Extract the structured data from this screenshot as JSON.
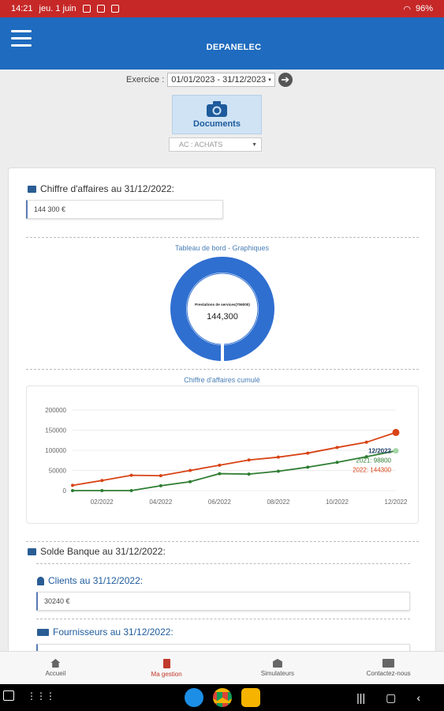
{
  "status": {
    "time": "14:21",
    "date": "jeu. 1 juin",
    "battery": "96%"
  },
  "app": {
    "title": "DEPANELEC"
  },
  "exercice": {
    "label": "Exercice :",
    "value": "01/01/2023 - 31/12/2023"
  },
  "documents": {
    "label": "Documents",
    "select_value": "AC : ACHATS"
  },
  "ca": {
    "title": "Chiffre d'affaires au 31/12/2022:",
    "value": "144 300 €"
  },
  "dashboard": {
    "title": "Tableau de bord - Graphiques",
    "donut_label": "Prestations de services(706000)",
    "donut_value": "144,300"
  },
  "chart_data": {
    "type": "line",
    "title": "Chiffre d'affaires cumulé",
    "x": [
      "01/2022",
      "02/2022",
      "03/2022",
      "04/2022",
      "05/2022",
      "06/2022",
      "07/2022",
      "08/2022",
      "09/2022",
      "10/2022",
      "11/2022",
      "12/2022"
    ],
    "x_ticks": [
      "02/2022",
      "04/2022",
      "06/2022",
      "08/2022",
      "10/2022",
      "12/2022"
    ],
    "ylim": [
      0,
      200000
    ],
    "y_ticks": [
      "0",
      "50000",
      "100000",
      "150000",
      "200000"
    ],
    "series": [
      {
        "name": "2022",
        "color": "#d84315",
        "values": [
          13000,
          25000,
          38000,
          37000,
          50000,
          63000,
          76000,
          83000,
          93000,
          107000,
          120000,
          144300
        ]
      },
      {
        "name": "2021",
        "color": "#2e7d32",
        "values": [
          0,
          0,
          0,
          12000,
          22000,
          42000,
          41000,
          48000,
          58000,
          70000,
          84000,
          98800
        ]
      }
    ],
    "annotations": {
      "header": "12/2022",
      "s2021": "2021: 98800",
      "s2022": "2022: 144300"
    },
    "grid": true
  },
  "banque": {
    "title": "Solde Banque au 31/12/2022:"
  },
  "clients": {
    "title": "Clients au 31/12/2022:",
    "value": "30240 €"
  },
  "fournisseurs": {
    "title": "Fournisseurs au 31/12/2022:"
  },
  "nav": [
    {
      "label": "Accueil"
    },
    {
      "label": "Ma gestion"
    },
    {
      "label": "Simulateurs"
    },
    {
      "label": "Contactez-nous"
    }
  ]
}
